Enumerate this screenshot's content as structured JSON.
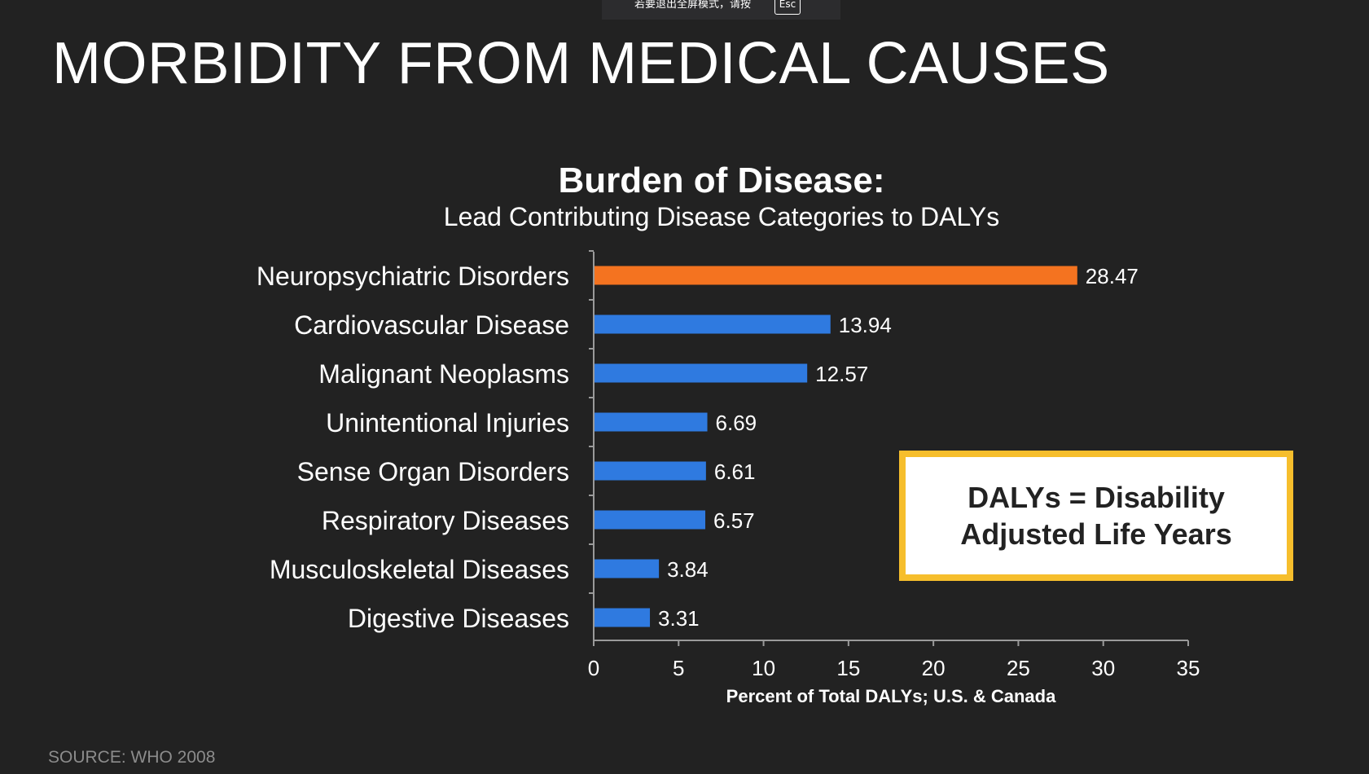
{
  "fullscreen_banner": {
    "text": "若要退出全屏模式，请按",
    "key": "Esc"
  },
  "slide": {
    "title": "MORBIDITY FROM MEDICAL CAUSES",
    "source": "SOURCE: WHO 2008"
  },
  "callout": {
    "text": "DALYs = Disability Adjusted Life Years",
    "border_color": "#f6be2c"
  },
  "colors": {
    "background": "#222222",
    "highlight_bar": "#f47320",
    "bar": "#2f7ae0",
    "axis": "#9a9a9a"
  },
  "chart_data": {
    "type": "bar",
    "orientation": "horizontal",
    "title": "Burden of Disease:",
    "subtitle": "Lead Contributing Disease Categories to DALYs",
    "xlabel": "Percent of Total DALYs; U.S. & Canada",
    "ylabel": "",
    "xlim": [
      0,
      35
    ],
    "xticks": [
      0,
      5,
      10,
      15,
      20,
      25,
      30,
      35
    ],
    "grid": false,
    "categories": [
      "Neuropsychiatric Disorders",
      "Cardiovascular Disease",
      "Malignant Neoplasms",
      "Unintentional Injuries",
      "Sense Organ Disorders",
      "Respiratory Diseases",
      "Musculoskeletal Diseases",
      "Digestive Diseases"
    ],
    "values": [
      28.47,
      13.94,
      12.57,
      6.69,
      6.61,
      6.57,
      3.84,
      3.31
    ],
    "value_labels": [
      "28.47",
      "13.94",
      "12.57",
      "6.69",
      "6.61",
      "6.57",
      "3.84",
      "3.31"
    ],
    "highlighted_category": "Neuropsychiatric Disorders"
  }
}
